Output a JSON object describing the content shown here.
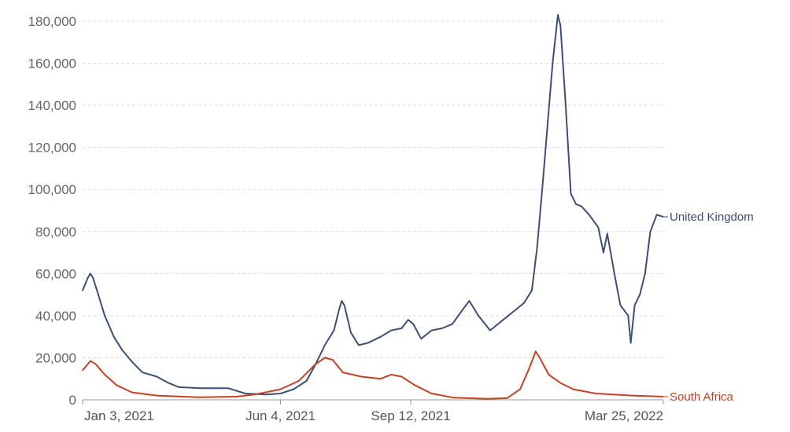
{
  "chart_data": {
    "type": "line",
    "title": "",
    "xlabel": "",
    "ylabel": "",
    "ylim": [
      0,
      180000
    ],
    "yticks": [
      0,
      20000,
      40000,
      60000,
      80000,
      100000,
      120000,
      140000,
      160000,
      180000
    ],
    "ytick_labels": [
      "0",
      "20,000",
      "40,000",
      "60,000",
      "80,000",
      "100,000",
      "120,000",
      "140,000",
      "160,000",
      "180,000"
    ],
    "xlim": [
      "2021-01-03",
      "2022-03-25"
    ],
    "xticks": [
      "2021-01-03",
      "2021-06-04",
      "2021-09-12",
      "2022-03-25"
    ],
    "xtick_labels": [
      "Jan 3, 2021",
      "Jun 4, 2021",
      "Sep 12, 2021",
      "Mar 25, 2022"
    ],
    "grid": true,
    "colors": {
      "United Kingdom": "#3c4e7a",
      "South Africa": "#c8401f",
      "grid": "#dddddd"
    },
    "series": [
      {
        "name": "United Kingdom",
        "points": [
          [
            "2021-01-03",
            52000
          ],
          [
            "2021-01-07",
            58000
          ],
          [
            "2021-01-09",
            60000
          ],
          [
            "2021-01-11",
            58000
          ],
          [
            "2021-01-15",
            50000
          ],
          [
            "2021-01-20",
            40000
          ],
          [
            "2021-01-27",
            30000
          ],
          [
            "2021-02-02",
            24000
          ],
          [
            "2021-02-10",
            18000
          ],
          [
            "2021-02-18",
            13000
          ],
          [
            "2021-03-01",
            11000
          ],
          [
            "2021-03-10",
            8000
          ],
          [
            "2021-03-18",
            6000
          ],
          [
            "2021-04-05",
            5500
          ],
          [
            "2021-04-25",
            5500
          ],
          [
            "2021-05-08",
            3000
          ],
          [
            "2021-05-24",
            2500
          ],
          [
            "2021-06-04",
            3000
          ],
          [
            "2021-06-14",
            5000
          ],
          [
            "2021-06-24",
            9000
          ],
          [
            "2021-07-01",
            17000
          ],
          [
            "2021-07-08",
            26000
          ],
          [
            "2021-07-15",
            33000
          ],
          [
            "2021-07-19",
            43000
          ],
          [
            "2021-07-21",
            47000
          ],
          [
            "2021-07-23",
            45000
          ],
          [
            "2021-07-28",
            32000
          ],
          [
            "2021-08-03",
            26000
          ],
          [
            "2021-08-10",
            27000
          ],
          [
            "2021-08-20",
            30000
          ],
          [
            "2021-08-28",
            33000
          ],
          [
            "2021-09-05",
            34000
          ],
          [
            "2021-09-10",
            38000
          ],
          [
            "2021-09-14",
            36000
          ],
          [
            "2021-09-20",
            29000
          ],
          [
            "2021-09-28",
            33000
          ],
          [
            "2021-10-06",
            34000
          ],
          [
            "2021-10-14",
            36000
          ],
          [
            "2021-10-22",
            43000
          ],
          [
            "2021-10-27",
            47000
          ],
          [
            "2021-11-03",
            40000
          ],
          [
            "2021-11-12",
            33000
          ],
          [
            "2021-11-22",
            38000
          ],
          [
            "2021-11-30",
            42000
          ],
          [
            "2021-12-08",
            46000
          ],
          [
            "2021-12-14",
            52000
          ],
          [
            "2021-12-18",
            72000
          ],
          [
            "2021-12-22",
            100000
          ],
          [
            "2021-12-26",
            130000
          ],
          [
            "2021-12-30",
            160000
          ],
          [
            "2022-01-03",
            183000
          ],
          [
            "2022-01-05",
            178000
          ],
          [
            "2022-01-09",
            140000
          ],
          [
            "2022-01-13",
            98000
          ],
          [
            "2022-01-17",
            93000
          ],
          [
            "2022-01-21",
            92000
          ],
          [
            "2022-01-27",
            88000
          ],
          [
            "2022-02-03",
            82000
          ],
          [
            "2022-02-07",
            70000
          ],
          [
            "2022-02-10",
            79000
          ],
          [
            "2022-02-16",
            58000
          ],
          [
            "2022-02-20",
            45000
          ],
          [
            "2022-02-26",
            40000
          ],
          [
            "2022-02-28",
            27000
          ],
          [
            "2022-03-03",
            45000
          ],
          [
            "2022-03-07",
            50000
          ],
          [
            "2022-03-11",
            60000
          ],
          [
            "2022-03-15",
            80000
          ],
          [
            "2022-03-20",
            88000
          ],
          [
            "2022-03-25",
            87000
          ]
        ]
      },
      {
        "name": "South Africa",
        "points": [
          [
            "2021-01-03",
            14000
          ],
          [
            "2021-01-09",
            18500
          ],
          [
            "2021-01-13",
            17000
          ],
          [
            "2021-01-20",
            12000
          ],
          [
            "2021-01-29",
            7000
          ],
          [
            "2021-02-10",
            3500
          ],
          [
            "2021-03-01",
            2000
          ],
          [
            "2021-04-01",
            1200
          ],
          [
            "2021-05-01",
            1500
          ],
          [
            "2021-05-15",
            2500
          ],
          [
            "2021-06-04",
            5000
          ],
          [
            "2021-06-18",
            9000
          ],
          [
            "2021-07-01",
            17000
          ],
          [
            "2021-07-08",
            20000
          ],
          [
            "2021-07-14",
            19000
          ],
          [
            "2021-07-22",
            13000
          ],
          [
            "2021-08-05",
            11000
          ],
          [
            "2021-08-20",
            10000
          ],
          [
            "2021-08-28",
            12000
          ],
          [
            "2021-09-05",
            11000
          ],
          [
            "2021-09-15",
            7000
          ],
          [
            "2021-09-28",
            3000
          ],
          [
            "2021-10-15",
            1000
          ],
          [
            "2021-11-10",
            500
          ],
          [
            "2021-11-25",
            800
          ],
          [
            "2021-12-05",
            5000
          ],
          [
            "2021-12-12",
            15000
          ],
          [
            "2021-12-17",
            23000
          ],
          [
            "2021-12-20",
            20000
          ],
          [
            "2021-12-27",
            12000
          ],
          [
            "2022-01-05",
            8000
          ],
          [
            "2022-01-15",
            5000
          ],
          [
            "2022-02-01",
            3000
          ],
          [
            "2022-03-01",
            2000
          ],
          [
            "2022-03-25",
            1500
          ]
        ]
      }
    ]
  }
}
